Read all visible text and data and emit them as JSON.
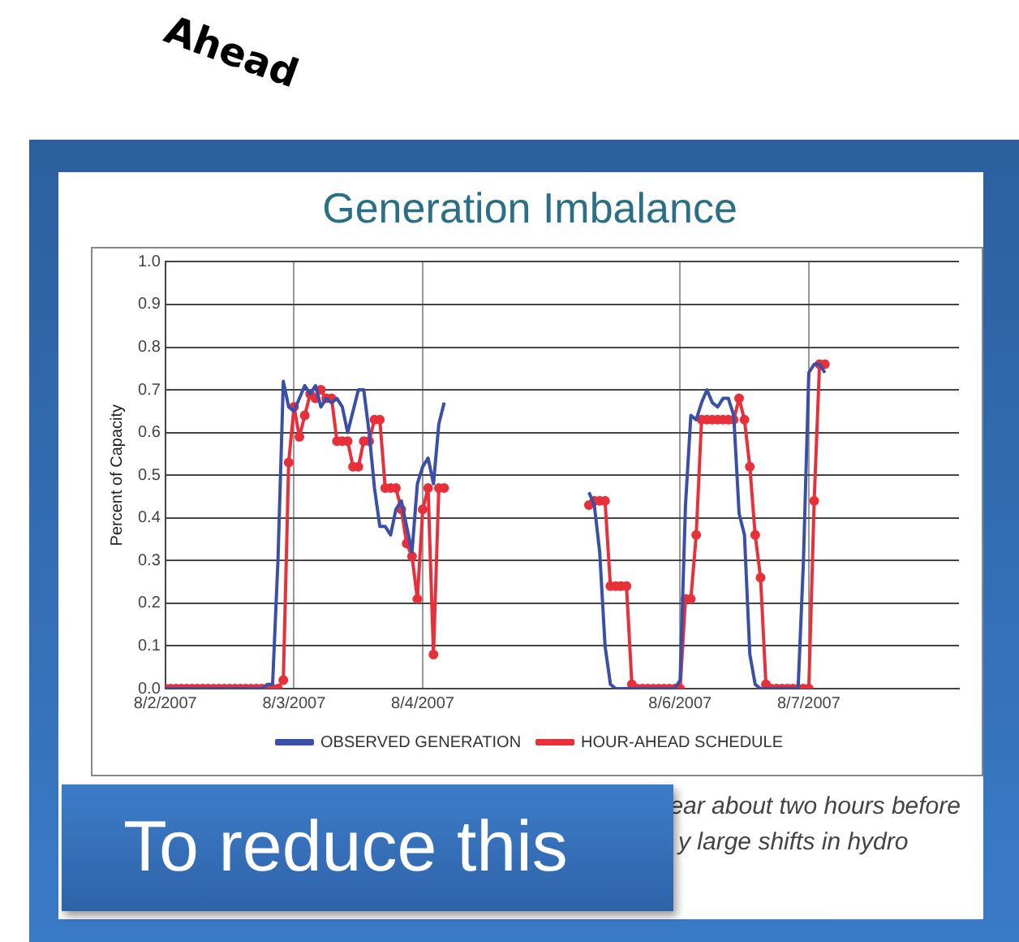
{
  "chart_data": {
    "type": "line",
    "title": "Generation Imbalance",
    "ylabel": "Percent of Capacity",
    "x": [
      "2007-08-02T00:00",
      "2007-08-02T01:00",
      "2007-08-02T02:00",
      "2007-08-02T03:00",
      "2007-08-02T04:00",
      "2007-08-02T05:00",
      "2007-08-02T06:00",
      "2007-08-02T07:00",
      "2007-08-02T08:00",
      "2007-08-02T09:00",
      "2007-08-02T10:00",
      "2007-08-02T11:00",
      "2007-08-02T12:00",
      "2007-08-02T13:00",
      "2007-08-02T14:00",
      "2007-08-02T15:00",
      "2007-08-02T16:00",
      "2007-08-02T17:00",
      "2007-08-02T18:00",
      "2007-08-02T19:00",
      "2007-08-02T20:00",
      "2007-08-02T21:00",
      "2007-08-02T22:00",
      "2007-08-02T23:00",
      "2007-08-03T00:00",
      "2007-08-03T01:00",
      "2007-08-03T02:00",
      "2007-08-03T03:00",
      "2007-08-03T04:00",
      "2007-08-03T05:00",
      "2007-08-03T06:00",
      "2007-08-03T07:00",
      "2007-08-03T08:00",
      "2007-08-03T09:00",
      "2007-08-03T10:00",
      "2007-08-03T11:00",
      "2007-08-03T12:00",
      "2007-08-03T13:00",
      "2007-08-03T14:00",
      "2007-08-03T15:00",
      "2007-08-03T16:00",
      "2007-08-03T17:00",
      "2007-08-03T18:00",
      "2007-08-03T19:00",
      "2007-08-03T20:00",
      "2007-08-03T21:00",
      "2007-08-03T22:00",
      "2007-08-03T23:00",
      "2007-08-04T00:00",
      "2007-08-04T01:00",
      "2007-08-04T02:00",
      "2007-08-04T03:00",
      "2007-08-04T04:00",
      "2007-08-04T05:00",
      "2007-08-04T06:00",
      "2007-08-04T07:00",
      "2007-08-04T08:00",
      "2007-08-04T09:00",
      "2007-08-04T10:00",
      "2007-08-04T11:00",
      "2007-08-04T12:00",
      "2007-08-04T13:00",
      "2007-08-04T14:00",
      "2007-08-04T15:00",
      "2007-08-04T16:00",
      "2007-08-04T17:00",
      "2007-08-04T18:00",
      "2007-08-04T19:00",
      "2007-08-04T20:00",
      "2007-08-04T21:00",
      "2007-08-04T22:00",
      "2007-08-04T23:00",
      "2007-08-05T00:00",
      "2007-08-05T01:00",
      "2007-08-05T02:00",
      "2007-08-05T03:00",
      "2007-08-05T04:00",
      "2007-08-05T05:00",
      "2007-08-05T06:00",
      "2007-08-05T07:00",
      "2007-08-05T08:00",
      "2007-08-05T09:00",
      "2007-08-05T10:00",
      "2007-08-05T11:00",
      "2007-08-05T12:00",
      "2007-08-05T13:00",
      "2007-08-05T14:00",
      "2007-08-05T15:00",
      "2007-08-05T16:00",
      "2007-08-05T17:00",
      "2007-08-05T18:00",
      "2007-08-05T19:00",
      "2007-08-05T20:00",
      "2007-08-05T21:00",
      "2007-08-05T22:00",
      "2007-08-05T23:00",
      "2007-08-06T00:00",
      "2007-08-06T01:00",
      "2007-08-06T02:00",
      "2007-08-06T03:00",
      "2007-08-06T04:00",
      "2007-08-06T05:00",
      "2007-08-06T06:00",
      "2007-08-06T07:00",
      "2007-08-06T08:00",
      "2007-08-06T09:00",
      "2007-08-06T10:00",
      "2007-08-06T11:00",
      "2007-08-06T12:00",
      "2007-08-06T13:00",
      "2007-08-06T14:00",
      "2007-08-06T15:00",
      "2007-08-06T16:00",
      "2007-08-06T17:00",
      "2007-08-06T18:00",
      "2007-08-06T19:00",
      "2007-08-06T20:00",
      "2007-08-06T21:00",
      "2007-08-06T22:00",
      "2007-08-06T23:00",
      "2007-08-07T00:00",
      "2007-08-07T01:00",
      "2007-08-07T02:00",
      "2007-08-07T03:00"
    ],
    "series": [
      {
        "name": "OBSERVED GENERATION",
        "color": "#3a4fa8",
        "marker": "none",
        "values": [
          0,
          0,
          0,
          0,
          0,
          0,
          0,
          0,
          0,
          0,
          0,
          0,
          0,
          0,
          0,
          0,
          0,
          0,
          0,
          0.01,
          0.01,
          0.3,
          0.72,
          0.66,
          0.65,
          0.68,
          0.71,
          0.69,
          0.71,
          0.66,
          0.68,
          0.67,
          0.68,
          0.66,
          0.6,
          0.65,
          0.7,
          0.7,
          0.6,
          0.47,
          0.38,
          0.38,
          0.36,
          0.42,
          0.44,
          0.38,
          0.32,
          0.48,
          0.52,
          0.54,
          0.48,
          0.62,
          0.67,
          null,
          null,
          null,
          null,
          null,
          null,
          null,
          null,
          null,
          null,
          null,
          null,
          null,
          null,
          null,
          null,
          null,
          null,
          null,
          null,
          null,
          null,
          null,
          null,
          null,
          null,
          0.46,
          0.43,
          0.32,
          0.1,
          0.01,
          0,
          0,
          0,
          0,
          0,
          0,
          0,
          0,
          0,
          0,
          0,
          0,
          0.02,
          0.43,
          0.64,
          0.63,
          0.67,
          0.7,
          0.67,
          0.66,
          0.68,
          0.68,
          0.64,
          0.41,
          0.36,
          0.08,
          0.01,
          0,
          0,
          0,
          0,
          0,
          0,
          0,
          0,
          0.3,
          0.74,
          0.76,
          0.76,
          0.74
        ]
      },
      {
        "name": "HOUR-AHEAD SCHEDULE",
        "color": "#e8303a",
        "marker": "circle",
        "values": [
          0,
          0,
          0,
          0,
          0,
          0,
          0,
          0,
          0,
          0,
          0,
          0,
          0,
          0,
          0,
          0,
          0,
          0,
          0,
          0,
          0,
          0,
          0.02,
          0.53,
          0.66,
          0.59,
          0.64,
          0.69,
          0.68,
          0.7,
          0.68,
          0.68,
          0.58,
          0.58,
          0.58,
          0.52,
          0.52,
          0.58,
          0.58,
          0.63,
          0.63,
          0.47,
          0.47,
          0.47,
          0.42,
          0.34,
          0.31,
          0.21,
          0.42,
          0.47,
          0.08,
          0.47,
          0.47,
          null,
          null,
          null,
          null,
          null,
          null,
          null,
          null,
          null,
          null,
          null,
          null,
          null,
          null,
          null,
          null,
          null,
          null,
          null,
          null,
          null,
          null,
          null,
          null,
          null,
          null,
          0.43,
          0.44,
          0.44,
          0.44,
          0.24,
          0.24,
          0.24,
          0.24,
          0.01,
          0,
          0,
          0,
          0,
          0,
          0,
          0,
          0,
          0,
          0.21,
          0.21,
          0.36,
          0.63,
          0.63,
          0.63,
          0.63,
          0.63,
          0.63,
          0.63,
          0.68,
          0.63,
          0.52,
          0.36,
          0.26,
          0.01,
          0,
          0,
          0,
          0,
          0,
          0,
          0,
          0,
          0.44,
          0.76,
          0.76
        ]
      }
    ],
    "xlim": [
      "2007-08-02T00:00",
      "2007-08-08T04:00"
    ],
    "xticks": [
      {
        "value": "2007-08-02",
        "label": "8/2/2007"
      },
      {
        "value": "2007-08-03",
        "label": "8/3/2007"
      },
      {
        "value": "2007-08-04",
        "label": "8/4/2007"
      },
      {
        "value": "2007-08-06",
        "label": "8/6/2007"
      },
      {
        "value": "2007-08-07",
        "label": "8/7/2007"
      }
    ],
    "ylim": [
      0,
      1
    ],
    "yticks": [
      {
        "value": 0,
        "label": "0.0"
      },
      {
        "value": 0.1,
        "label": "0.1"
      },
      {
        "value": 0.2,
        "label": "0.2"
      },
      {
        "value": 0.3,
        "label": "0.3"
      },
      {
        "value": 0.4,
        "label": "0.4"
      },
      {
        "value": 0.5,
        "label": "0.5"
      },
      {
        "value": 0.6,
        "label": "0.6"
      },
      {
        "value": 0.7,
        "label": "0.7"
      },
      {
        "value": 0.8,
        "label": "0.8"
      },
      {
        "value": 0.9,
        "label": "0.9"
      },
      {
        "value": 1,
        "label": "1.0"
      }
    ],
    "grid": true,
    "legend": "bottom",
    "annotations": [
      "Ahead",
      "To reduce this",
      "ear about two hours before",
      "y large shifts in hydro"
    ]
  }
}
